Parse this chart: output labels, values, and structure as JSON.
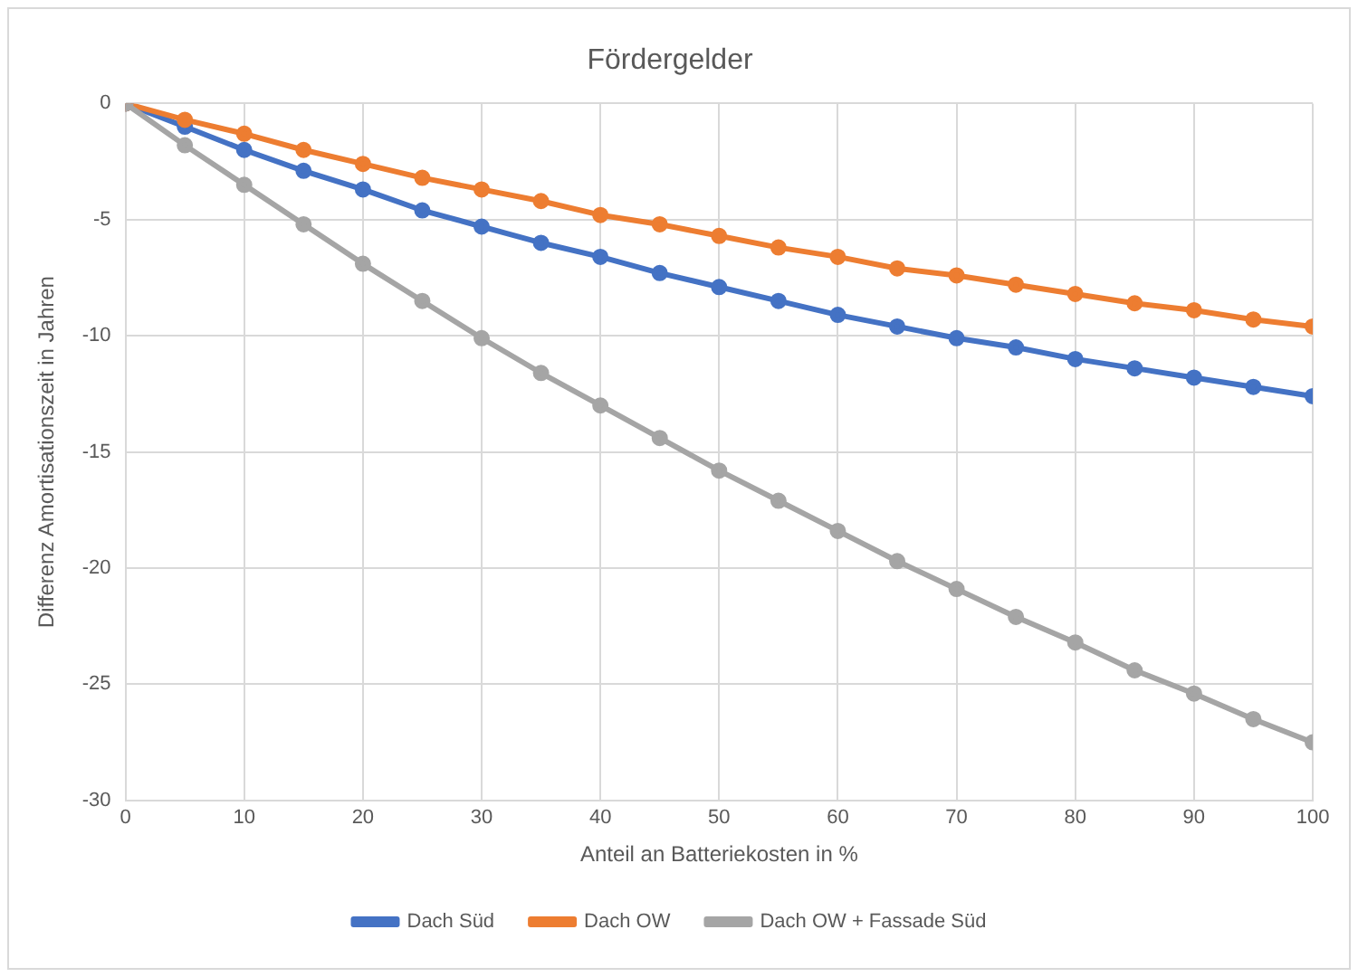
{
  "chart_data": {
    "type": "line",
    "title": "Fördergelder",
    "xlabel": "Anteil an Batteriekosten in %",
    "ylabel": "Differenz Amortisationszeit in Jahren",
    "x": [
      0,
      5,
      10,
      15,
      20,
      25,
      30,
      35,
      40,
      45,
      50,
      55,
      60,
      65,
      70,
      75,
      80,
      85,
      90,
      95,
      100
    ],
    "series": [
      {
        "name": "Dach Süd",
        "color": "#4472c4",
        "values": [
          0,
          -1.0,
          -2.0,
          -2.9,
          -3.7,
          -4.6,
          -5.3,
          -6.0,
          -6.6,
          -7.3,
          -7.9,
          -8.5,
          -9.1,
          -9.6,
          -10.1,
          -10.5,
          -11.0,
          -11.4,
          -11.8,
          -12.2,
          -12.6
        ]
      },
      {
        "name": "Dach OW",
        "color": "#ed7d31",
        "values": [
          0,
          -0.7,
          -1.3,
          -2.0,
          -2.6,
          -3.2,
          -3.7,
          -4.2,
          -4.8,
          -5.2,
          -5.7,
          -6.2,
          -6.6,
          -7.1,
          -7.4,
          -7.8,
          -8.2,
          -8.6,
          -8.9,
          -9.3,
          -9.6
        ]
      },
      {
        "name": "Dach OW + Fassade Süd",
        "color": "#a5a5a5",
        "values": [
          0,
          -1.8,
          -3.5,
          -5.2,
          -6.9,
          -8.5,
          -10.1,
          -11.6,
          -13.0,
          -14.4,
          -15.8,
          -17.1,
          -18.4,
          -19.7,
          -20.9,
          -22.1,
          -23.2,
          -24.4,
          -25.4,
          -26.5,
          -27.5
        ]
      }
    ],
    "xlim": [
      0,
      100
    ],
    "xticks": [
      0,
      10,
      20,
      30,
      40,
      50,
      60,
      70,
      80,
      90,
      100
    ],
    "ylim": [
      -30,
      0
    ],
    "yticks": [
      -30,
      -25,
      -20,
      -15,
      -10,
      -5,
      0
    ],
    "grid": true,
    "legend": "bottom",
    "marker": "circle",
    "line_style": "solid"
  }
}
